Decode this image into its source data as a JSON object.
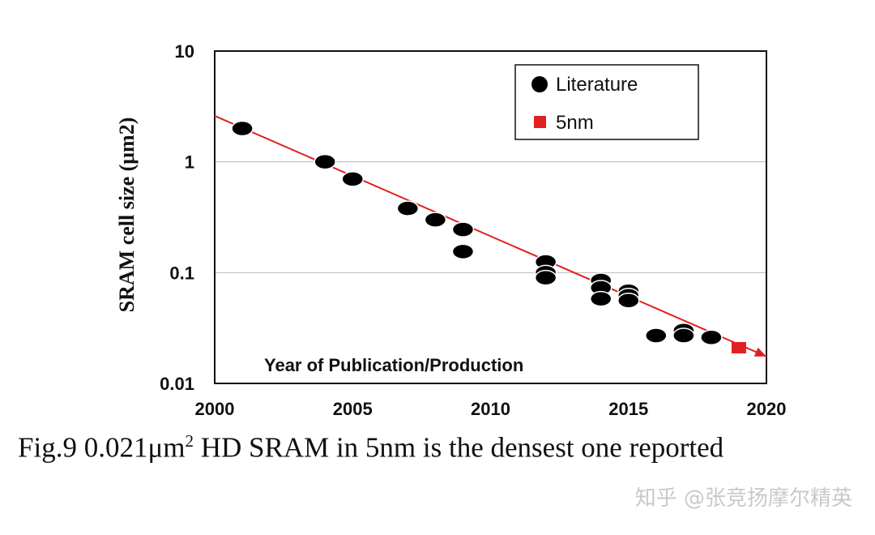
{
  "chart_data": {
    "type": "scatter",
    "title": "",
    "xlabel": "Year of Publication/Production",
    "ylabel": "SRAM cell size  (μm2)",
    "xlim": [
      2000,
      2020
    ],
    "ylim": [
      0.01,
      10
    ],
    "yscale": "log",
    "x_ticks": [
      "2000",
      "2005",
      "2010",
      "2015",
      "2020"
    ],
    "y_ticks": [
      "10",
      "1",
      "0.1",
      "0.01"
    ],
    "grid": "horizontal at decades",
    "legend_position": "top-right",
    "series": [
      {
        "name": "Literature",
        "marker": "circle",
        "color": "#000000",
        "points": [
          [
            2001,
            2.0
          ],
          [
            2004,
            1.0
          ],
          [
            2005,
            0.7
          ],
          [
            2007,
            0.38
          ],
          [
            2008,
            0.3
          ],
          [
            2009,
            0.245
          ],
          [
            2009,
            0.155
          ],
          [
            2012,
            0.125
          ],
          [
            2012,
            0.1
          ],
          [
            2012,
            0.09
          ],
          [
            2014,
            0.085
          ],
          [
            2014,
            0.073
          ],
          [
            2014,
            0.058
          ],
          [
            2015,
            0.068
          ],
          [
            2015,
            0.062
          ],
          [
            2015,
            0.056
          ],
          [
            2016,
            0.027
          ],
          [
            2017,
            0.03
          ],
          [
            2017,
            0.027
          ],
          [
            2018,
            0.026
          ]
        ]
      },
      {
        "name": "5nm",
        "marker": "square",
        "color": "#e02020",
        "points": [
          [
            2019,
            0.021
          ]
        ]
      }
    ],
    "trendline": {
      "color": "#e02020",
      "from": [
        2000,
        2.6
      ],
      "to": [
        2020,
        0.0175
      ]
    }
  },
  "caption": {
    "prefix": "Fig.9 0.021μm",
    "sup": "2",
    "suffix": " HD SRAM in 5nm is the densest one reported"
  },
  "watermark": "知乎 @张竞扬摩尔精英"
}
